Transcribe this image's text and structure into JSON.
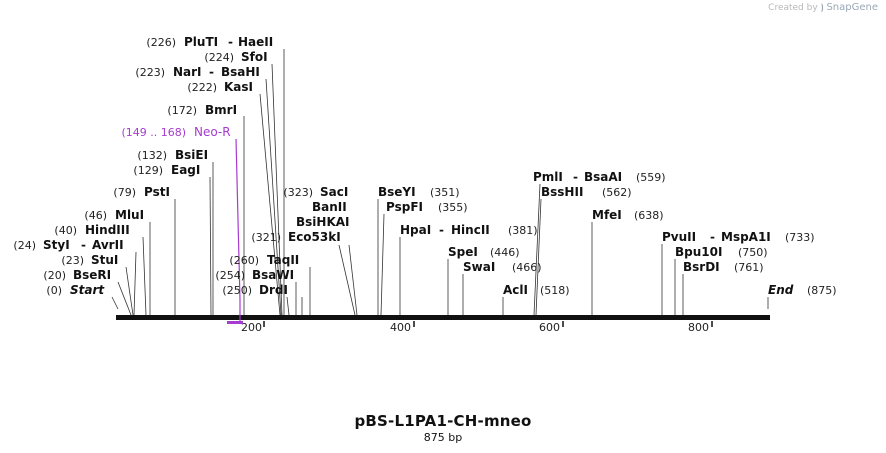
{
  "credit": {
    "prefix": "Created by",
    "brand": "SnapGene"
  },
  "title": "pBS-L1PA1-CH-mneo",
  "length_label": "875 bp",
  "sequence_length": 875,
  "axis_ticks": [
    "200",
    "400",
    "600",
    "800"
  ],
  "enzymes": [
    {
      "name": "PluTI",
      "pos": "(226)",
      "second": "HaeII",
      "site": 226
    },
    {
      "name": "SfoI",
      "pos": "(224)",
      "site": 224
    },
    {
      "name": "NarI",
      "pos": "(223)",
      "second": "BsaHI",
      "site": 223
    },
    {
      "name": "KasI",
      "pos": "(222)",
      "site": 222
    },
    {
      "name": "BmrI",
      "pos": "(172)",
      "site": 172
    },
    {
      "name": "BsiEI",
      "pos": "(132)",
      "site": 132
    },
    {
      "name": "EagI",
      "pos": "(129)",
      "site": 129
    },
    {
      "name": "PstI",
      "pos": "(79)",
      "site": 79
    },
    {
      "name": "MluI",
      "pos": "(46)",
      "site": 46
    },
    {
      "name": "HindIII",
      "pos": "(40)",
      "site": 40
    },
    {
      "name": "StyI",
      "pos": "(24)",
      "second": "AvrII",
      "site": 24
    },
    {
      "name": "StuI",
      "pos": "(23)",
      "site": 23
    },
    {
      "name": "BseRI",
      "pos": "(20)",
      "site": 20
    },
    {
      "name": "Start",
      "pos": "(0)",
      "site": 0
    },
    {
      "name": "SacI",
      "pos": "(323)",
      "site": 323
    },
    {
      "name": "BanII",
      "site": 323
    },
    {
      "name": "BsiHKAI",
      "site": 323
    },
    {
      "name": "Eco53kI",
      "pos": "(321)",
      "site": 321
    },
    {
      "name": "TaqII",
      "pos": "(260)",
      "site": 260
    },
    {
      "name": "BsaWI",
      "pos": "(254)",
      "site": 254
    },
    {
      "name": "DrdI",
      "pos": "(250)",
      "site": 250
    },
    {
      "name": "BseYI",
      "pos": "(351)",
      "site": 351
    },
    {
      "name": "PspFI",
      "pos": "(355)",
      "site": 355
    },
    {
      "name": "HpaI",
      "second": "HincII",
      "pos": "(381)",
      "site": 381
    },
    {
      "name": "SpeI",
      "pos": "(446)",
      "site": 446
    },
    {
      "name": "SwaI",
      "pos": "(466)",
      "site": 466
    },
    {
      "name": "AclI",
      "pos": "(518)",
      "site": 518
    },
    {
      "name": "PmlI",
      "second": "BsaAI",
      "pos": "(559)",
      "site": 559
    },
    {
      "name": "BssHII",
      "pos": "(562)",
      "site": 562
    },
    {
      "name": "MfeI",
      "pos": "(638)",
      "site": 638
    },
    {
      "name": "PvuII",
      "second": "MspA1I",
      "pos": "(733)",
      "site": 733
    },
    {
      "name": "Bpu10I",
      "pos": "(750)",
      "site": 750
    },
    {
      "name": "BsrDI",
      "pos": "(761)",
      "site": 761
    },
    {
      "name": "End",
      "pos": "(875)",
      "site": 875
    }
  ],
  "features": [
    {
      "name": "Neo-R",
      "range": "(149 .. 168)",
      "color": "#a63bd0",
      "start": 149,
      "end": 168
    }
  ],
  "colors": {
    "feature": "#a63bd0",
    "backbone": "#111111"
  }
}
